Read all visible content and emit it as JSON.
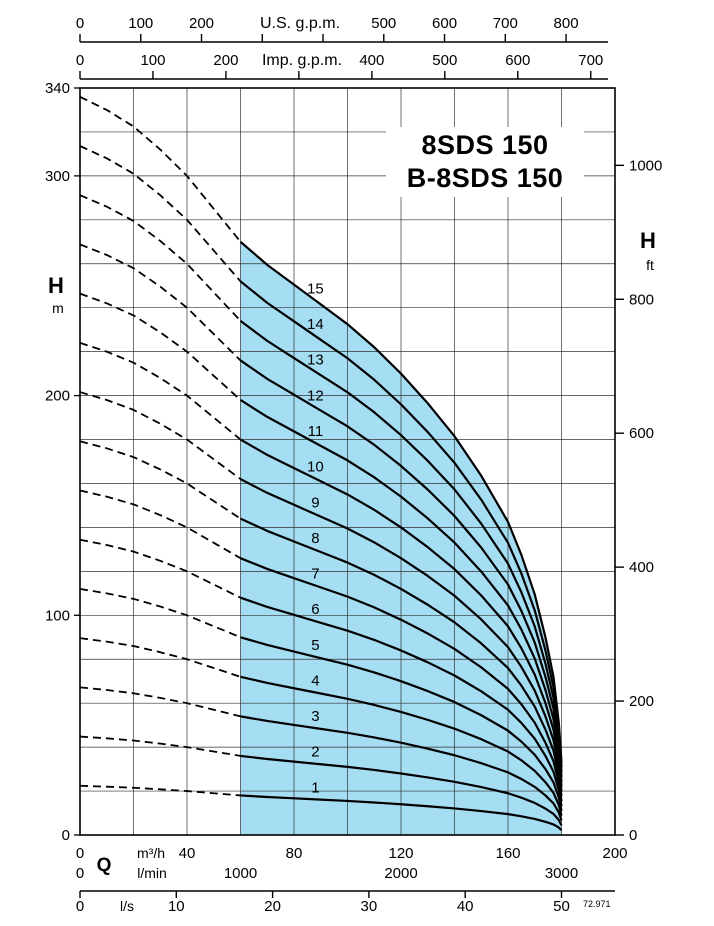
{
  "meta": {
    "code": "72.971",
    "background": "#ffffff"
  },
  "title": {
    "line1": "8SDS 150",
    "line2": "B-8SDS 150"
  },
  "chart_data": {
    "type": "line",
    "title": "8SDS 150 / B-8SDS 150 multistage pump performance curves (head vs flow)",
    "x_unit_primary": "m³/h",
    "x_range_m3h": [
      0,
      200
    ],
    "x_grid_step_m3h": 20,
    "y_unit_primary": "m",
    "y_range_m": [
      0,
      340
    ],
    "y_grid_step_m": 20,
    "grid": true,
    "axes": {
      "us_gpm": {
        "label": "U.S. g.p.m.",
        "m3h_per_unit": 0.227125,
        "ticks": [
          0,
          100,
          200,
          300,
          400,
          500,
          600,
          700,
          800
        ],
        "labeled": [
          0,
          100,
          200,
          500,
          600,
          700,
          800
        ]
      },
      "imp_gpm": {
        "label": "Imp. g.p.m.",
        "m3h_per_unit": 0.272766,
        "ticks": [
          0,
          100,
          200,
          300,
          400,
          500,
          600,
          700
        ],
        "labeled": [
          0,
          100,
          200,
          400,
          500,
          600,
          700
        ]
      },
      "m3h": {
        "label": "m³/h",
        "q_label": "Q",
        "labeled": [
          0,
          40,
          80,
          120,
          160,
          200
        ]
      },
      "lmin": {
        "label": "l/min",
        "m3h_per_unit": 0.06,
        "labeled": [
          0,
          1000,
          2000,
          3000
        ]
      },
      "ls": {
        "label": "l/s",
        "m3h_per_unit": 3.6,
        "ticks": [
          0,
          10,
          20,
          30,
          40,
          50
        ],
        "labeled": [
          0,
          10,
          20,
          30,
          40,
          50
        ]
      },
      "h_m": {
        "label": "H",
        "unit": "m",
        "labeled": [
          0,
          100,
          200,
          300,
          340
        ]
      },
      "h_ft": {
        "label": "H",
        "unit": "ft",
        "m_per_unit": 0.3048,
        "labeled": [
          0,
          200,
          400,
          600,
          800,
          1000
        ]
      }
    },
    "series_model": {
      "description": "Head per stage vs flow; curve for stage count N = N × head_per_stage",
      "q_m3h": [
        0,
        10,
        20,
        30,
        40,
        50,
        60,
        70,
        80,
        90,
        100,
        110,
        120,
        130,
        140,
        150,
        160,
        165,
        170,
        174,
        177,
        179,
        180
      ],
      "head_per_stage_m": [
        22.4,
        22.0,
        21.5,
        20.8,
        20.0,
        19.0,
        18.0,
        17.3,
        16.7,
        16.1,
        15.5,
        14.8,
        14.0,
        13.1,
        12.1,
        10.9,
        9.5,
        8.5,
        7.3,
        6.0,
        4.8,
        3.4,
        2.2
      ]
    },
    "stages": [
      1,
      2,
      3,
      4,
      5,
      6,
      7,
      8,
      9,
      10,
      11,
      12,
      13,
      14,
      15
    ],
    "stage_label_q_m3h": 88,
    "operating_range": {
      "q_min_m3h": 60,
      "q_max_m3h": 180,
      "fill_color": "#a5ddf2"
    },
    "dashed_range": {
      "q_min_m3h": 0,
      "q_max_m3h": 60
    },
    "curve_color": "#000000",
    "grid_color": "#333333",
    "legend": "none"
  }
}
